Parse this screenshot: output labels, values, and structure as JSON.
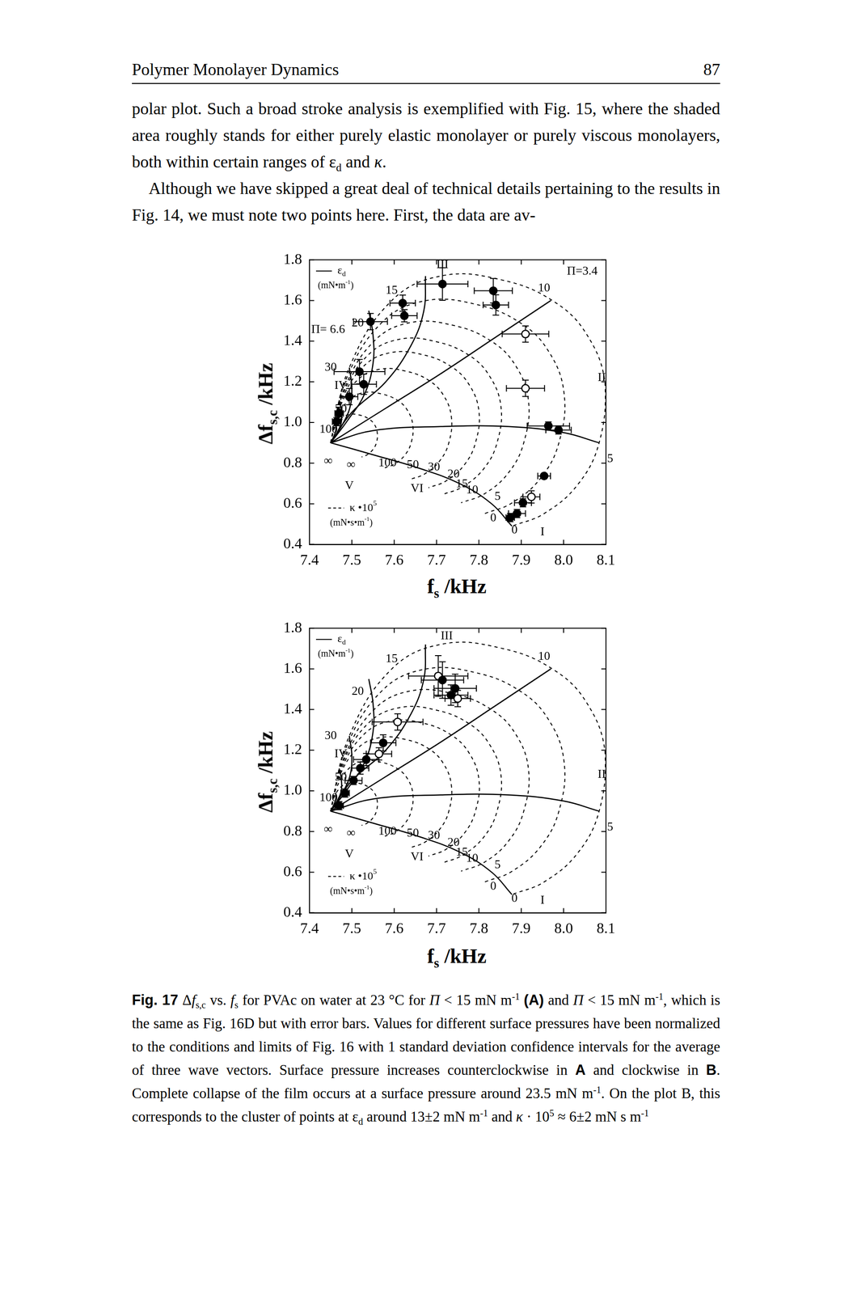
{
  "header": {
    "title": "Polymer Monolayer Dynamics",
    "page": "87"
  },
  "paragraphs": [
    [
      "polar plot. Such a broad stroke analysis is exemplified with Fig. 15, where the shaded area roughly stands for either purely elastic monolayer or purely viscous monolayers, both within certain ranges of ε",
      {
        "sub": "d"
      },
      " and ",
      {
        "i": "κ"
      },
      "."
    ],
    [
      "Although we have skipped a great deal of technical details pertaining to the results in Fig. 14, we must note two points here. First, the data are av-"
    ]
  ],
  "model_curves": {
    "series": [
      {
        "line_style": "solid",
        "x": [
          7.45,
          7.554,
          7.654,
          7.754,
          7.83,
          7.878
        ],
        "values": [
          0.9,
          0.839,
          0.778,
          0.7,
          0.6,
          0.49
        ]
      },
      {
        "line_style": "solid",
        "x": [
          7.45,
          7.55,
          7.71,
          7.87,
          8.0,
          8.084
        ],
        "values": [
          0.9,
          0.96,
          0.98,
          0.98,
          0.95,
          0.9
        ]
      },
      {
        "line_style": "solid",
        "x": [
          7.45,
          7.58,
          7.71,
          7.84,
          7.97
        ],
        "values": [
          0.9,
          1.07,
          1.24,
          1.42,
          1.6
        ]
      },
      {
        "line_style": "solid",
        "x": [
          7.45,
          7.5,
          7.58,
          7.64,
          7.67,
          7.674
        ],
        "values": [
          0.9,
          1.05,
          1.2,
          1.38,
          1.55,
          1.72
        ]
      },
      {
        "line_style": "solid",
        "x": [
          7.45,
          7.49,
          7.53,
          7.55,
          7.55,
          7.54
        ],
        "values": [
          0.9,
          1.01,
          1.14,
          1.29,
          1.43,
          1.55
        ]
      },
      {
        "line_style": "solid",
        "x": [
          7.45,
          7.475,
          7.495,
          7.5,
          7.494
        ],
        "values": [
          0.9,
          0.98,
          1.07,
          1.17,
          1.27
        ]
      },
      {
        "line_style": "solid",
        "x": [
          7.45,
          7.465,
          7.475,
          7.475,
          7.47
        ],
        "values": [
          0.9,
          0.95,
          1.0,
          1.06,
          1.11
        ]
      },
      {
        "line_style": "solid",
        "x": [
          7.45,
          7.457,
          7.462,
          7.462
        ],
        "values": [
          0.9,
          0.93,
          0.96,
          0.99
        ]
      },
      {
        "line_style": "dashed",
        "x": [
          7.45,
          7.494,
          7.594,
          7.714,
          7.854,
          7.974,
          8.054,
          8.098,
          8.084,
          8.034,
          7.954,
          7.878
        ],
        "values": [
          0.9,
          1.27,
          1.599,
          1.722,
          1.701,
          1.599,
          1.435,
          1.188,
          0.901,
          0.696,
          0.552,
          0.49
        ]
      },
      {
        "line_style": "dashed",
        "x": [
          7.45,
          7.487,
          7.572,
          7.674,
          7.793,
          7.895,
          7.963,
          8.001,
          7.989,
          7.946,
          7.878,
          7.814
        ],
        "values": [
          0.9,
          1.215,
          1.494,
          1.599,
          1.581,
          1.494,
          1.355,
          1.145,
          0.901,
          0.727,
          0.604,
          0.552
        ]
      },
      {
        "line_style": "dashed",
        "x": [
          7.45,
          7.482,
          7.554,
          7.64,
          7.741,
          7.827,
          7.885,
          7.917,
          7.906,
          7.87,
          7.813,
          7.758
        ],
        "values": [
          0.9,
          1.166,
          1.403,
          1.492,
          1.477,
          1.403,
          1.285,
          1.107,
          0.901,
          0.753,
          0.649,
          0.605
        ]
      },
      {
        "line_style": "dashed",
        "x": [
          7.45,
          7.477,
          7.539,
          7.614,
          7.7,
          7.775,
          7.824,
          7.852,
          7.843,
          7.812,
          7.762,
          7.715
        ],
        "values": [
          0.9,
          1.129,
          1.333,
          1.41,
          1.397,
          1.333,
          1.232,
          1.079,
          0.901,
          0.774,
          0.684,
          0.646
        ]
      },
      {
        "line_style": "dashed",
        "x": [
          7.45,
          7.474,
          7.528,
          7.593,
          7.668,
          7.733,
          7.776,
          7.8,
          7.792,
          7.765,
          7.722,
          7.681
        ],
        "values": [
          0.9,
          1.1,
          1.277,
          1.344,
          1.333,
          1.277,
          1.189,
          1.056,
          0.901,
          0.79,
          0.712,
          0.679
        ]
      },
      {
        "line_style": "dashed",
        "x": [
          7.45,
          7.469,
          7.513,
          7.566,
          7.628,
          7.681,
          7.716,
          7.735,
          7.729,
          7.707,
          7.672,
          7.638
        ],
        "values": [
          0.9,
          1.063,
          1.208,
          1.262,
          1.252,
          1.208,
          1.135,
          1.027,
          0.9,
          0.81,
          0.747,
          0.72
        ]
      },
      {
        "line_style": "dashed",
        "x": [
          7.45,
          7.463,
          7.493,
          7.529,
          7.571,
          7.607,
          7.631,
          7.644,
          7.64,
          7.625,
          7.601,
          7.578
        ],
        "values": [
          0.9,
          1.011,
          1.11,
          1.147,
          1.14,
          1.11,
          1.061,
          0.986,
          0.9,
          0.839,
          0.796,
          0.777
        ]
      },
      {
        "line_style": "dashed",
        "x": [
          7.45,
          7.457,
          7.474,
          7.495,
          7.519,
          7.539,
          7.553,
          7.56,
          7.558,
          7.549,
          7.536,
          7.523
        ],
        "values": [
          0.9,
          0.963,
          1.019,
          1.04,
          1.036,
          1.019,
          0.991,
          0.949,
          0.9,
          0.865,
          0.841,
          0.83
        ]
      }
    ],
    "annotations": [
      {
        "text": "15",
        "x": 7.594,
        "y": 1.648
      },
      {
        "text": "20",
        "x": 7.514,
        "y": 1.488
      },
      {
        "text": "30",
        "x": 7.45,
        "y": 1.27
      },
      {
        "text": "IV",
        "x": 7.474,
        "y": 1.18
      },
      {
        "text": "50",
        "x": 7.474,
        "y": 1.065
      },
      {
        "text": "100",
        "x": 7.445,
        "y": 0.965
      },
      {
        "text": "10",
        "x": 7.954,
        "y": 1.66
      },
      {
        "text": "5",
        "x": 8.11,
        "y": 0.82
      },
      {
        "text": "∞",
        "x": 7.444,
        "y": 0.81
      },
      {
        "text": "∞",
        "x": 7.498,
        "y": 0.79
      },
      {
        "text": "100",
        "x": 7.584,
        "y": 0.8
      },
      {
        "text": "50",
        "x": 7.644,
        "y": 0.79
      },
      {
        "text": "30",
        "x": 7.694,
        "y": 0.78
      },
      {
        "text": "20",
        "x": 7.74,
        "y": 0.745
      },
      {
        "text": "15",
        "x": 7.76,
        "y": 0.696
      },
      {
        "text": "10",
        "x": 7.784,
        "y": 0.667
      },
      {
        "text": "5",
        "x": 7.844,
        "y": 0.634
      },
      {
        "text": "0",
        "x": 7.834,
        "y": 0.53
      },
      {
        "text": "0",
        "x": 7.884,
        "y": 0.47
      },
      {
        "text": "I",
        "x": 7.95,
        "y": 0.46
      },
      {
        "text": "V",
        "x": 7.494,
        "y": 0.687
      },
      {
        "text": "VI",
        "x": 7.654,
        "y": 0.675
      }
    ],
    "key": [
      {
        "line_style": "solid",
        "label": [
          "ε",
          {
            "sub": "d"
          }
        ],
        "unit": [
          "(mN•m",
          {
            "sup": "-1"
          },
          ")"
        ]
      },
      {
        "line_style": "dashed",
        "label": [
          "κ •10",
          {
            "sup": "5"
          }
        ],
        "unit": [
          "(mN•s•m",
          {
            "sup": "-1"
          },
          ")"
        ]
      }
    ]
  },
  "chart_data": [
    {
      "type": "scatter",
      "x_label": [
        "f",
        {
          "sub": "s"
        },
        " /kHz"
      ],
      "y_label": [
        "Δf",
        {
          "sub": "s,c"
        },
        " /kHz"
      ],
      "xlim": [
        7.4,
        8.1
      ],
      "ylim": [
        0.4,
        1.8
      ],
      "xticks": [
        7.4,
        7.5,
        7.6,
        7.7,
        7.8,
        7.9,
        {
          "value": 8,
          "label": "8.0"
        },
        8.1
      ],
      "yticks": [
        0.4,
        0.6,
        0.8,
        {
          "value": 1,
          "label": "1.0"
        },
        1.2,
        1.4,
        1.6,
        1.8
      ],
      "grid": false,
      "series": [
        {
          "marker": "filled_circle",
          "x": [
            7.714,
            7.834,
            7.84,
            7.62,
            7.624,
            7.544,
            7.518,
            7.528,
            7.494,
            7.47,
            7.464,
            7.964,
            7.988,
            7.954,
            7.904,
            7.89,
            7.874
          ],
          "values": [
            1.681,
            1.648,
            1.578,
            1.587,
            1.525,
            1.496,
            1.25,
            1.188,
            1.127,
            1.045,
            1.004,
            0.983,
            0.963,
            0.737,
            0.605,
            0.552,
            0.532
          ],
          "x_error": [
            0.06,
            0.045,
            0.03,
            0.03,
            0.03,
            0.04,
            0.06,
            0.03,
            0.02,
            0.01,
            0.01,
            0.05,
            0.03,
            0.015,
            0.02,
            0.02,
            0.01
          ],
          "y_error": [
            0.08,
            0.06,
            0.05,
            0.04,
            0.03,
            0.04,
            0.06,
            0.05,
            0.04,
            0.03,
            0.02,
            0.02,
            0.02,
            0.01,
            0.02,
            0.02,
            0.02
          ]
        },
        {
          "marker": "open_circle",
          "x": [
            7.91,
            7.91,
            7.924
          ],
          "values": [
            1.435,
            1.168,
            0.634
          ],
          "x_error": [
            0.055,
            0.045,
            0.02
          ],
          "y_error": [
            0.04,
            0.04,
            0.03
          ]
        }
      ],
      "annotations": [
        {
          "text": "III",
          "x": 7.714,
          "y": 1.775
        },
        {
          "text": "Π=3.4",
          "x": 8.044,
          "y": 1.743
        },
        {
          "text": "Π= 6.6",
          "x": 7.444,
          "y": 1.455
        },
        {
          "text": "II",
          "x": 8.09,
          "y": 1.22
        }
      ]
    },
    {
      "type": "scatter",
      "x_label": [
        "f",
        {
          "sub": "s"
        },
        " /kHz"
      ],
      "y_label": [
        "Δf",
        {
          "sub": "s,c"
        },
        " /kHz"
      ],
      "xlim": [
        7.4,
        8.1
      ],
      "ylim": [
        0.4,
        1.8
      ],
      "xticks": [
        7.4,
        7.5,
        7.6,
        7.7,
        7.8,
        7.9,
        {
          "value": 8,
          "label": "8.0"
        },
        8.1
      ],
      "yticks": [
        0.4,
        0.6,
        0.8,
        {
          "value": 1,
          "label": "1.0"
        },
        1.2,
        1.4,
        1.6,
        1.8
      ],
      "grid": false,
      "series": [
        {
          "marker": "filled_circle",
          "x": [
            7.714,
            7.744,
            7.734,
            7.574,
            7.534,
            7.52,
            7.504,
            7.484,
            7.47
          ],
          "values": [
            1.545,
            1.504,
            1.471,
            1.236,
            1.154,
            1.112,
            1.051,
            0.989,
            0.927
          ],
          "x_error": [
            0.05,
            0.05,
            0.04,
            0.03,
            0.03,
            0.02,
            0.02,
            0.01,
            0.01
          ],
          "y_error": [
            0.09,
            0.07,
            0.05,
            0.04,
            0.03,
            0.03,
            0.02,
            0.02,
            0.02
          ]
        },
        {
          "marker": "open_circle",
          "x": [
            7.704,
            7.75,
            7.608,
            7.564
          ],
          "values": [
            1.565,
            1.454,
            1.339,
            1.182
          ],
          "x_error": [
            0.07,
            0.03,
            0.06,
            0.03
          ],
          "y_error": [
            0.1,
            0.04,
            0.04,
            0.03
          ]
        }
      ],
      "annotations": [
        {
          "text": "III",
          "x": 7.724,
          "y": 1.76
        },
        {
          "text": "II",
          "x": 8.09,
          "y": 1.08
        }
      ]
    }
  ],
  "caption": [
    {
      "b": "Fig. 17"
    },
    " Δ",
    {
      "i": "f"
    },
    {
      "sub": "s,c"
    },
    " vs. ",
    {
      "i": "f"
    },
    {
      "sub": "s"
    },
    " for PVAc on water at 23 °C for ",
    {
      "i": "Π"
    },
    " < 15 mN m",
    {
      "sup": "-1"
    },
    " ",
    {
      "b": "(A)"
    },
    " and ",
    {
      "i": "Π"
    },
    " < 15 mN m",
    {
      "sup": "-1"
    },
    ", which is the same as Fig. 16D but with error bars. Values for different surface pressures have been normalized to the conditions and limits of Fig. 16 with 1 standard deviation confidence intervals for the average of three wave vectors. Surface pressure increases counterclockwise in ",
    {
      "b": "A"
    },
    " and clockwise in ",
    {
      "b": "B"
    },
    ". Complete collapse of the film occurs at a surface pressure around 23.5 mN m",
    {
      "sup": "-1"
    },
    ". On the plot B, this corresponds to the cluster of points at ε",
    {
      "sub": "d"
    },
    " around 13±2 mN m",
    {
      "sup": "-1"
    },
    " and ",
    {
      "i": "κ"
    },
    " · 10",
    {
      "sup": "5"
    },
    " ≈ 6±2 mN s m",
    {
      "sup": "-1"
    }
  ]
}
